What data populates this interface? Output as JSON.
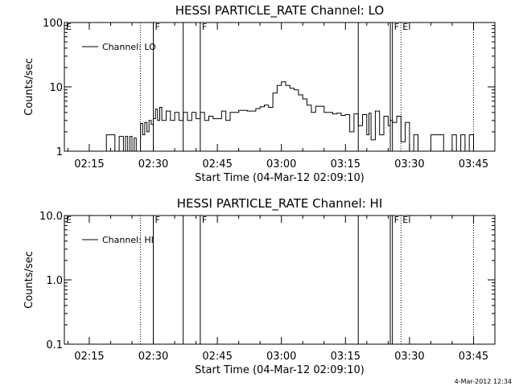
{
  "footer": {
    "timestamp": "4-Mar-2012 12:34"
  },
  "chart_data": [
    {
      "type": "line",
      "title": "HESSI PARTICLE_RATE Channel: LO",
      "xlabel": "Start Time (04-Mar-12 02:09:10)",
      "ylabel": "Counts/sec",
      "yscale": "log",
      "ylim": [
        1,
        100
      ],
      "xlim": [
        "02:09:10",
        "03:50:00"
      ],
      "yticks": [
        "1",
        "10",
        "100"
      ],
      "xticks": [
        "02:15",
        "02:30",
        "02:45",
        "03:00",
        "03:15",
        "03:30",
        "03:45"
      ],
      "legend": {
        "placement": "top-left",
        "entries": [
          "Channel: LO"
        ]
      },
      "event_markers": {
        "solid": [
          "02:30:00",
          "02:37:00",
          "02:41:00",
          "03:18:00",
          "03:25:30",
          "03:26:00"
        ],
        "dotted": [
          "02:27:00",
          "03:28:00",
          "03:45:00"
        ],
        "labels": [
          {
            "text": "E",
            "at": "02:09:10"
          },
          {
            "text": "F",
            "at": "02:30:00"
          },
          {
            "text": "F",
            "at": "02:41:00"
          },
          {
            "text": "F",
            "at": "03:26:00"
          },
          {
            "text": "E",
            "at": "03:28:00"
          }
        ]
      },
      "series": [
        {
          "name": "Channel: LO",
          "x": [
            "02:18:00",
            "02:19:00",
            "02:21:00",
            "02:22:00",
            "02:23:00",
            "02:23:30",
            "02:24:00",
            "02:24:30",
            "02:25:00",
            "02:25:30",
            "02:26:00",
            "02:27:00",
            "02:27:30",
            "02:28:00",
            "02:28:30",
            "02:29:00",
            "02:29:30",
            "02:30:00",
            "02:30:30",
            "02:31:00",
            "02:31:30",
            "02:32:00",
            "02:33:00",
            "02:34:00",
            "02:35:00",
            "02:36:00",
            "02:37:00",
            "02:38:00",
            "02:39:00",
            "02:40:00",
            "02:41:00",
            "02:42:00",
            "02:43:00",
            "02:44:00",
            "02:46:00",
            "02:47:00",
            "02:48:00",
            "02:50:00",
            "02:52:00",
            "02:54:00",
            "02:55:00",
            "02:56:00",
            "02:57:00",
            "02:58:00",
            "02:59:00",
            "03:00:00",
            "03:01:00",
            "03:02:00",
            "03:03:00",
            "03:04:00",
            "03:05:00",
            "03:06:00",
            "03:07:00",
            "03:08:00",
            "03:10:00",
            "03:12:00",
            "03:13:00",
            "03:14:00",
            "03:15:00",
            "03:16:00",
            "03:17:00",
            "03:18:00",
            "03:19:00",
            "03:20:00",
            "03:20:30",
            "03:21:00",
            "03:22:00",
            "03:23:00",
            "03:24:00",
            "03:25:00",
            "03:25:30",
            "03:26:00",
            "03:27:00",
            "03:28:00",
            "03:29:00",
            "03:30:00",
            "03:31:00",
            "03:32:00",
            "03:35:00",
            "03:38:00",
            "03:40:00",
            "03:41:00",
            "03:42:00",
            "03:43:00",
            "03:44:00",
            "03:45:00"
          ],
          "y": [
            1,
            1.8,
            1,
            1.7,
            1,
            1.7,
            1,
            1.7,
            1,
            1.6,
            1,
            2.7,
            1.8,
            2.8,
            2.0,
            3.0,
            2.6,
            3.2,
            4.5,
            3.0,
            4.8,
            3.0,
            4.2,
            3.0,
            4.0,
            3.0,
            4.0,
            3.0,
            4.0,
            3.2,
            4.0,
            3.0,
            3.5,
            3.2,
            4.2,
            3.0,
            4.0,
            4.3,
            4.2,
            4.6,
            4.9,
            5.2,
            4.8,
            8.0,
            10.5,
            12.0,
            10.5,
            9.5,
            9.0,
            7.5,
            6.5,
            5.2,
            4.0,
            5.0,
            4.0,
            3.8,
            3.9,
            3.6,
            3.7,
            2.0,
            3.8,
            2.5,
            3.7,
            1.8,
            3.9,
            1.5,
            4.2,
            1.8,
            3.5,
            2.5,
            3.0,
            2.8,
            3.5,
            1.4,
            2.8,
            1,
            1.8,
            1,
            1.8,
            1,
            1.8,
            1,
            1.8,
            1,
            1.8,
            1
          ]
        }
      ]
    },
    {
      "type": "line",
      "title": "HESSI PARTICLE_RATE Channel: HI",
      "xlabel": "Start Time (04-Mar-12 02:09:10)",
      "ylabel": "Counts/sec",
      "yscale": "log",
      "ylim": [
        0.1,
        10
      ],
      "xlim": [
        "02:09:10",
        "03:50:00"
      ],
      "yticks": [
        "0.1",
        "1.0",
        "10.0"
      ],
      "xticks": [
        "02:15",
        "02:30",
        "02:45",
        "03:00",
        "03:15",
        "03:30",
        "03:45"
      ],
      "legend": {
        "placement": "top-left",
        "entries": [
          "Channel: HI"
        ]
      },
      "event_markers": {
        "solid": [
          "02:30:00",
          "02:37:00",
          "02:41:00",
          "03:18:00",
          "03:25:30",
          "03:26:00"
        ],
        "dotted": [
          "02:27:00",
          "03:28:00",
          "03:45:00"
        ],
        "labels": [
          {
            "text": "E",
            "at": "02:09:10"
          },
          {
            "text": "F",
            "at": "02:30:00"
          },
          {
            "text": "F",
            "at": "02:41:00"
          },
          {
            "text": "F",
            "at": "03:26:00"
          },
          {
            "text": "E",
            "at": "03:28:00"
          }
        ]
      },
      "series": [
        {
          "name": "Channel: HI",
          "x": [],
          "y": []
        }
      ]
    }
  ]
}
